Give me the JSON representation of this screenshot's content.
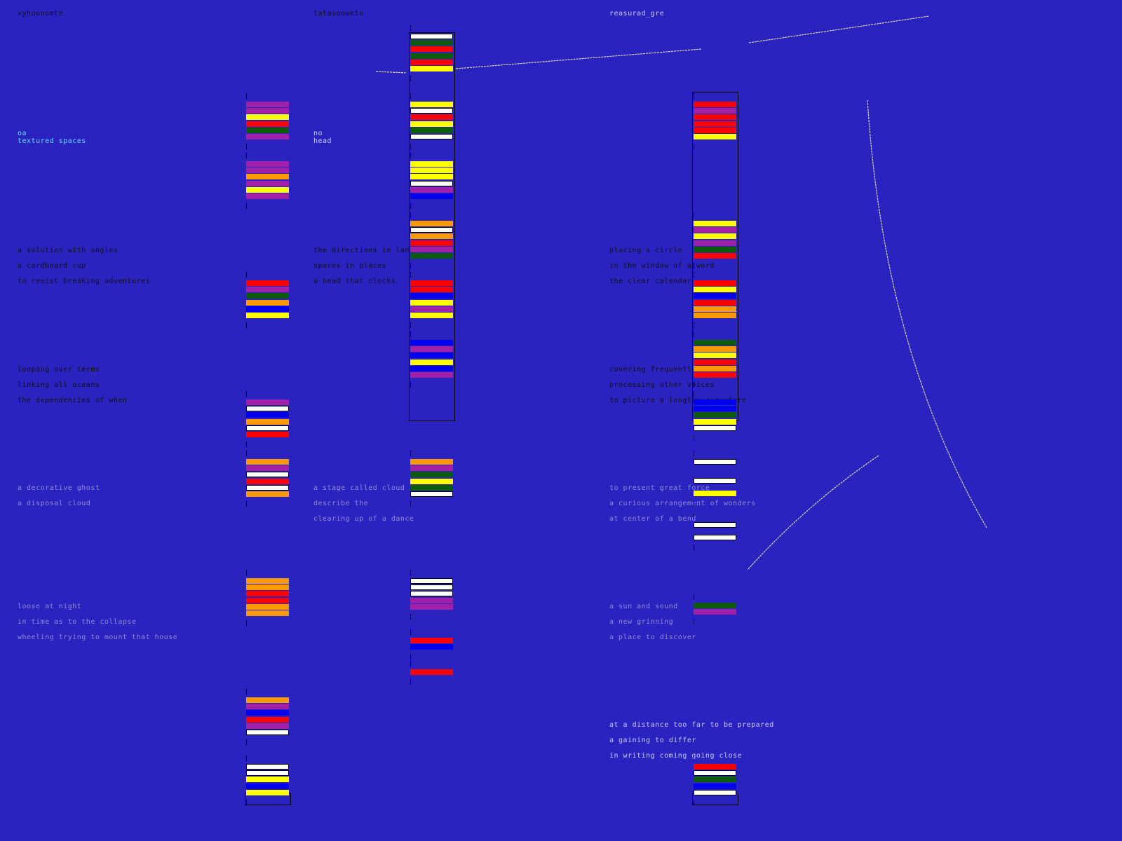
{
  "colors": {
    "background": "#2b23bf",
    "red": "#ff0000",
    "green": "#0c5a0c",
    "yellow": "#ffff00",
    "purple": "#a020a8",
    "orange": "#ff9900",
    "white": "#ffffff",
    "blue": "#0000ee",
    "line": "#d8d8a8"
  },
  "columns": [
    {
      "title": "xyhoooomte",
      "side_note": [
        "oa",
        "textured spaces"
      ],
      "stanzas": [
        [
          "a solution with angles",
          "a cardboard cup",
          "to resist breaking adventures"
        ],
        [
          "looping over terms",
          "linking all oceans",
          "the dependencies of when"
        ],
        [
          "a decorative ghost",
          "a disposal cloud"
        ],
        [
          "loose at night",
          "in time as to the collapse",
          "wheeling trying to mount that house"
        ]
      ],
      "bar_groups": [
        [
          "purple",
          "purple",
          "yellow",
          "red",
          "green",
          "purple"
        ],
        [
          "purple",
          "purple",
          "orange",
          "purple",
          "yellow",
          "purple"
        ],
        [
          "red",
          "purple",
          "green",
          "orange",
          "blue",
          "yellow"
        ],
        [
          "purple",
          "white",
          "blue",
          "orange",
          "white",
          "red"
        ],
        [
          "orange",
          "purple",
          "white",
          "red",
          "white",
          "orange"
        ],
        [
          "orange",
          "orange",
          "red",
          "red",
          "orange",
          "orange"
        ],
        [
          "orange",
          "purple",
          "blue",
          "red",
          "purple",
          "white"
        ],
        [
          "white",
          "white",
          "yellow",
          "blue",
          "yellow"
        ]
      ]
    },
    {
      "title": "tatasoowete",
      "side_note": [
        "no",
        "head"
      ],
      "stanzas": [
        [
          "the directions in languages",
          "spaces in places",
          "a head that clocks"
        ],
        [
          "a stage called cloud",
          "describe the",
          "clearing up of a dance"
        ]
      ],
      "bar_groups": [
        [
          "white",
          "green",
          "red",
          "green",
          "red",
          "yellow"
        ],
        [
          "yellow",
          "white",
          "red",
          "yellow",
          "green",
          "white"
        ],
        [
          "yellow",
          "yellow",
          "yellow",
          "white",
          "purple",
          "blue"
        ],
        [
          "orange",
          "white",
          "orange",
          "red",
          "purple",
          "green"
        ],
        [
          "red",
          "red",
          "blue",
          "yellow",
          "purple",
          "yellow"
        ],
        [
          "blue",
          "purple",
          "blue",
          "yellow",
          "blue",
          "purple"
        ],
        [
          "orange",
          "purple",
          "green",
          "yellow",
          "green",
          "white"
        ],
        [
          "white",
          "white",
          "white",
          "purple",
          "purple"
        ],
        [
          "red",
          "blue"
        ],
        [
          "red"
        ]
      ]
    },
    {
      "title": "reasurad_gre",
      "side_note": [],
      "stanzas": [
        [
          "placing a circle",
          "in the window of a word",
          "the clear calendar"
        ],
        [
          "covering frequently",
          "processing other voices",
          "to picture a lengthy curvature"
        ],
        [
          "to present great force",
          "a curious arrangement of wonders",
          "at center of a bend"
        ],
        [
          "a sun and sound",
          "a new grinning",
          "a place to discover"
        ],
        [
          "at a distance too far to be prepared",
          "a gaining to differ",
          "in writing coming going close"
        ]
      ],
      "bar_groups": [
        [
          "red",
          "purple",
          "red",
          "red",
          "red",
          "yellow"
        ],
        [
          "yellow",
          "purple",
          "yellow",
          "purple",
          "green",
          "red"
        ],
        [
          "red",
          "yellow",
          "blue",
          "red",
          "orange",
          "orange"
        ],
        [
          "green",
          "orange",
          "yellow",
          "red",
          "orange",
          "red"
        ],
        [
          "blue",
          "blue",
          "green",
          "yellow",
          "white"
        ],
        [
          "white",
          "white",
          "yellow"
        ],
        [
          "white",
          "white"
        ],
        [
          "green",
          "purple"
        ],
        [
          "red",
          "white",
          "green",
          "blue",
          "white"
        ]
      ]
    }
  ]
}
